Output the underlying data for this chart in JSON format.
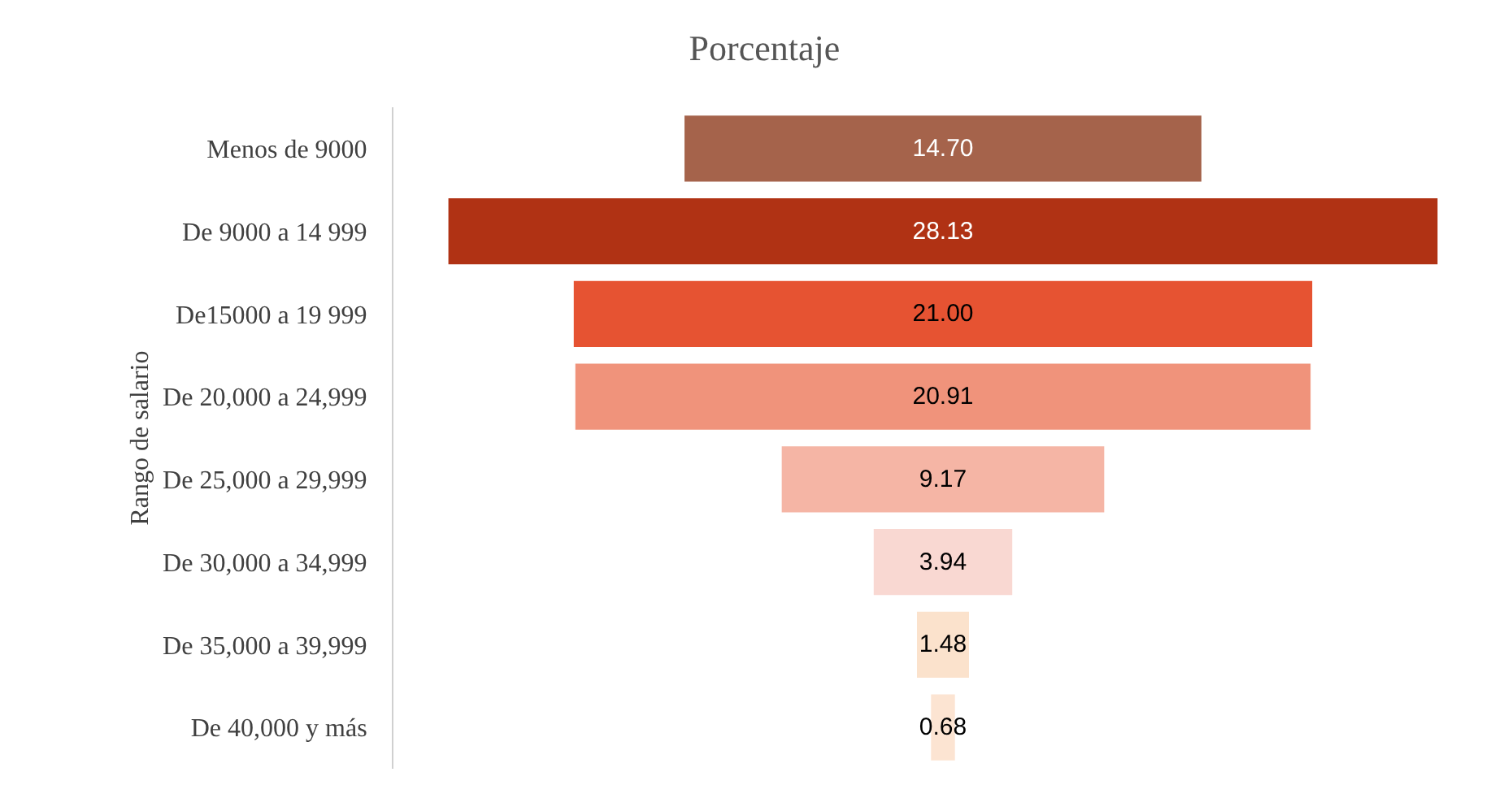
{
  "chart_data": {
    "type": "other",
    "title": "Porcentaje",
    "ylabel": "Rango de salario",
    "categories": [
      "Menos de 9000",
      "De 9000 a 14 999",
      "De15000 a 19 999",
      "De 20,000 a 24,999",
      "De 25,000 a 29,999",
      "De 30,000 a 34,999",
      "De 35,000 a 39,999",
      "De 40,000 y más"
    ],
    "values": [
      14.7,
      28.13,
      21.0,
      20.91,
      9.17,
      3.94,
      1.48,
      0.68
    ],
    "value_labels": [
      "14.70",
      "28.13",
      "21.00",
      "20.91",
      "9.17",
      "3.94",
      "1.48",
      "0.68"
    ],
    "colors": [
      "#a5634b",
      "#b03214",
      "#e65332",
      "#f0937b",
      "#f5b5a5",
      "#f9d8d2",
      "#fbe2cc",
      "#fce4d2"
    ],
    "data_labels": true,
    "legend": false
  }
}
